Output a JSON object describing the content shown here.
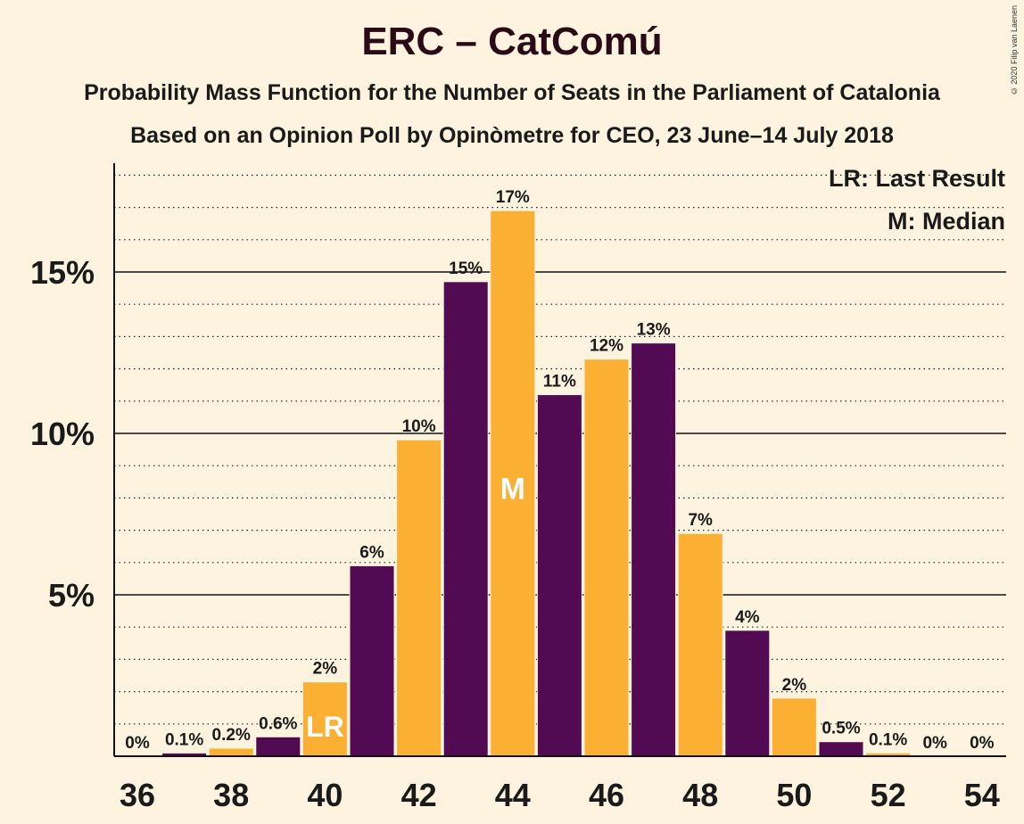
{
  "title": "ERC – CatComú",
  "subtitle": "Probability Mass Function for the Number of Seats in the Parliament of Catalonia",
  "subtitle2": "Based on an Opinion Poll by Opinòmetre for CEO, 23 June–14 July 2018",
  "copyright": "© 2020 Filip van Laenen",
  "legend": {
    "last_result": "LR: Last Result",
    "median": "M: Median"
  },
  "colors": {
    "background": "#fdf3de",
    "purple": "#520a52",
    "orange": "#fbaf33"
  },
  "chart_data": {
    "type": "bar",
    "categories": [
      36,
      37,
      38,
      39,
      40,
      41,
      42,
      43,
      44,
      45,
      46,
      47,
      48,
      49,
      50,
      51,
      52,
      53,
      54
    ],
    "values": [
      0,
      0.1,
      0.25,
      0.6,
      2.3,
      5.9,
      9.8,
      14.7,
      16.9,
      11.2,
      12.3,
      12.8,
      6.9,
      3.9,
      1.8,
      0.45,
      0.1,
      0,
      0
    ],
    "data_labels": [
      "0%",
      "0.1%",
      "0.2%",
      "0.6%",
      "2%",
      "6%",
      "10%",
      "15%",
      "17%",
      "11%",
      "12%",
      "13%",
      "7%",
      "4%",
      "2%",
      "0.5%",
      "0.1%",
      "0%",
      "0%"
    ],
    "x_tick_labels": [
      "36",
      "38",
      "40",
      "42",
      "44",
      "46",
      "48",
      "50",
      "52",
      "54"
    ],
    "y_tick_labels": [
      "5%",
      "10%",
      "15%"
    ],
    "y_ticks": [
      5,
      10,
      15
    ],
    "ylim": [
      0,
      18.3
    ],
    "minor_gridlines_every": 1,
    "last_result_seat": 40,
    "median_seat": 44,
    "last_result_marker": "LR",
    "median_marker": "M"
  }
}
